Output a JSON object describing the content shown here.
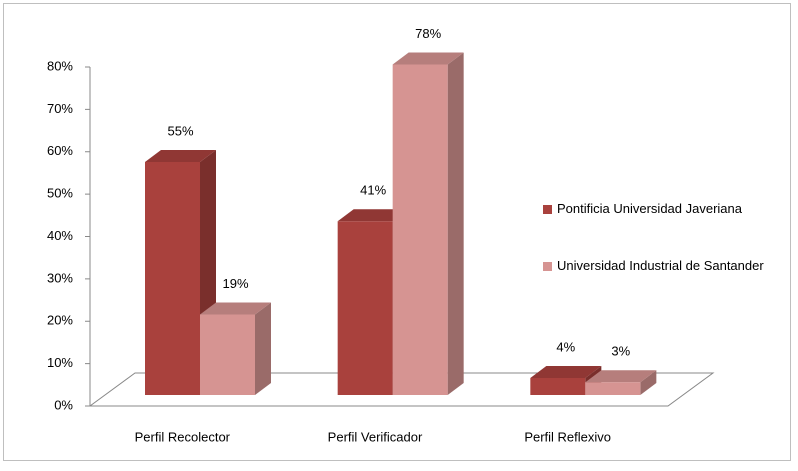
{
  "chart_data": {
    "type": "bar3d",
    "categories": [
      "Perfil Recolector",
      "Perfil Verificador",
      "Perfil Reflexivo"
    ],
    "series": [
      {
        "name": "Pontificia Universidad Javeriana",
        "color": "#a9413d",
        "values": [
          55,
          41,
          4
        ],
        "value_labels": [
          "55%",
          "41%",
          "4%"
        ]
      },
      {
        "name": "Universidad Industrial de Santander",
        "color": "#d69492",
        "values": [
          19,
          78,
          3
        ],
        "value_labels": [
          "19%",
          "78%",
          "3%"
        ]
      }
    ],
    "ylim": [
      0,
      80
    ],
    "yticks": [
      {
        "value": 0,
        "label": "0%"
      },
      {
        "value": 10,
        "label": "10%"
      },
      {
        "value": 20,
        "label": "20%"
      },
      {
        "value": 30,
        "label": "30%"
      },
      {
        "value": 40,
        "label": "40%"
      },
      {
        "value": 50,
        "label": "50%"
      },
      {
        "value": 60,
        "label": "60%"
      },
      {
        "value": 70,
        "label": "70%"
      },
      {
        "value": 80,
        "label": "80%"
      }
    ],
    "legend": "right"
  }
}
